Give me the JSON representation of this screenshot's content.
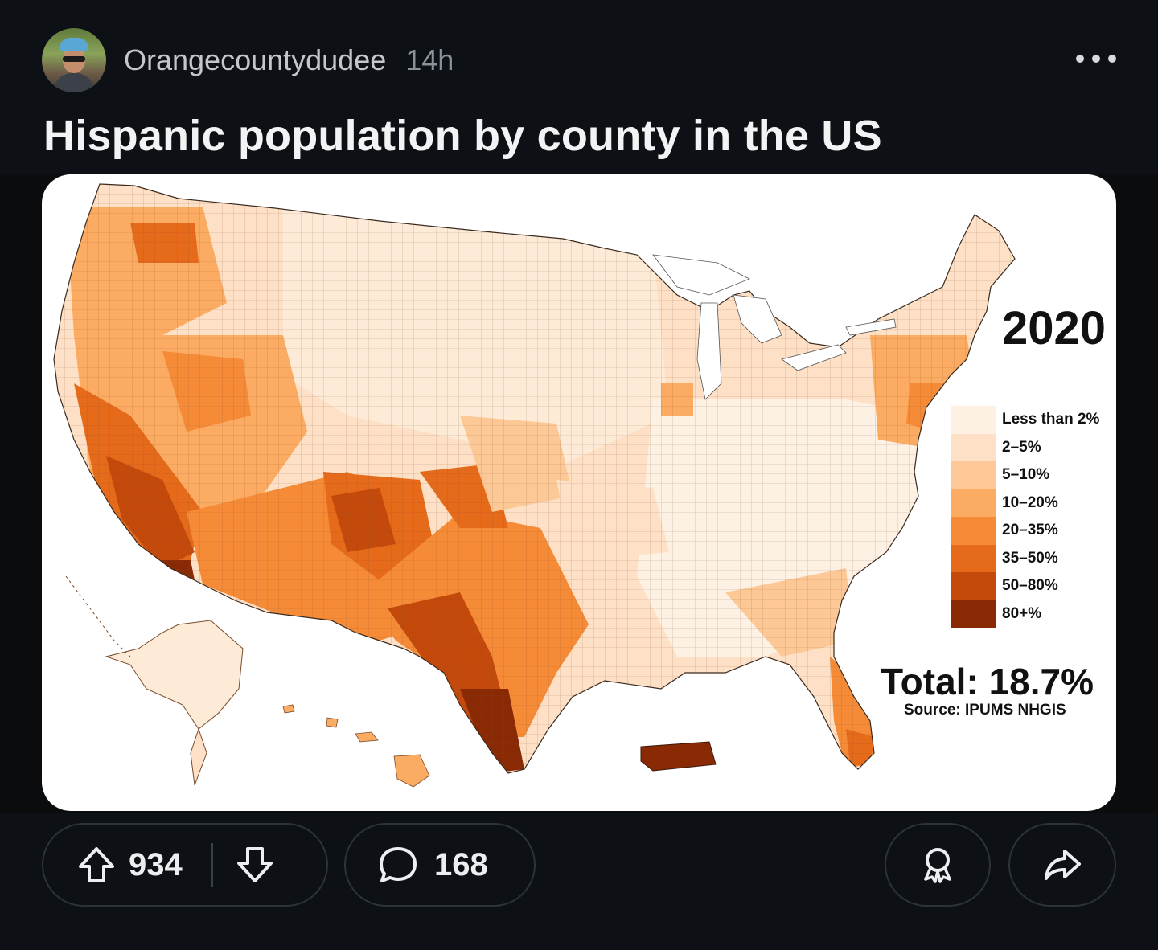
{
  "post": {
    "username": "Orangecountydudee",
    "time": "14h",
    "title": "Hispanic population by county in the US"
  },
  "map": {
    "year": "2020",
    "legend": [
      {
        "label": "Less than 2%",
        "color": "#fdf1e4"
      },
      {
        "label": "2–5%",
        "color": "#fde0c5"
      },
      {
        "label": "5–10%",
        "color": "#fdc895"
      },
      {
        "label": "10–20%",
        "color": "#fcab62"
      },
      {
        "label": "20–35%",
        "color": "#f68b37"
      },
      {
        "label": "35–50%",
        "color": "#e56a1a"
      },
      {
        "label": "50–80%",
        "color": "#c44a0c"
      },
      {
        "label": "80+%",
        "color": "#8a2a05"
      }
    ],
    "total": "Total: 18.7%",
    "source": "Source: IPUMS NHGIS"
  },
  "actions": {
    "upvotes": "934",
    "comments": "168"
  },
  "icons": {
    "upvote": "arrow-up-icon",
    "downvote": "arrow-down-icon",
    "comment": "speech-bubble-icon",
    "award": "award-ribbon-icon",
    "share": "share-arrow-icon",
    "more": "ellipsis-icon"
  }
}
